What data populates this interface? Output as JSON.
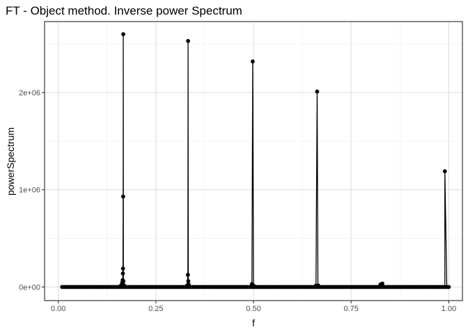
{
  "chart_data": {
    "type": "line",
    "title": "FT - Object method. Inverse power Spectrum",
    "xlabel": "f",
    "ylabel": "powerSpectrum",
    "xlim": [
      -0.035,
      1.035
    ],
    "ylim": [
      -140000,
      2730000
    ],
    "x_ticks": [
      {
        "value": 0.0,
        "label": "0.00"
      },
      {
        "value": 0.25,
        "label": "0.25"
      },
      {
        "value": 0.5,
        "label": "0.50"
      },
      {
        "value": 0.75,
        "label": "0.75"
      },
      {
        "value": 1.0,
        "label": "1.00"
      }
    ],
    "y_ticks": [
      {
        "value": 0,
        "label": "0e+00"
      },
      {
        "value": 1000000,
        "label": "1e+06"
      },
      {
        "value": 2000000,
        "label": "2e+06"
      }
    ],
    "grid": true,
    "markers": true,
    "series": [
      {
        "color": "#000000",
        "background_points": {
          "x_start": 0.01,
          "x_end": 1.0,
          "step": 0.005,
          "value": 0
        },
        "peaks": [
          {
            "x": 0.16,
            "y": 12000
          },
          {
            "x": 0.162,
            "y": 22000
          },
          {
            "x": 0.164,
            "y": 45000
          },
          {
            "x": 0.165,
            "y": 70000
          },
          {
            "x": 0.1655,
            "y": 140000
          },
          {
            "x": 0.1658,
            "y": 190000
          },
          {
            "x": 0.1662,
            "y": 930000
          },
          {
            "x": 0.1665,
            "y": 2600000
          },
          {
            "x": 0.1668,
            "y": 60000
          },
          {
            "x": 0.168,
            "y": 20000
          },
          {
            "x": 0.33,
            "y": 15000
          },
          {
            "x": 0.332,
            "y": 125000
          },
          {
            "x": 0.3325,
            "y": 2530000
          },
          {
            "x": 0.333,
            "y": 60000
          },
          {
            "x": 0.334,
            "y": 25000
          },
          {
            "x": 0.496,
            "y": 30000
          },
          {
            "x": 0.498,
            "y": 2320000
          },
          {
            "x": 0.5,
            "y": 15000
          },
          {
            "x": 0.66,
            "y": 15000
          },
          {
            "x": 0.663,
            "y": 2010000
          },
          {
            "x": 0.666,
            "y": 15000
          },
          {
            "x": 0.825,
            "y": 25000
          },
          {
            "x": 0.83,
            "y": 35000
          },
          {
            "x": 0.99,
            "y": 1190000
          }
        ]
      }
    ]
  }
}
